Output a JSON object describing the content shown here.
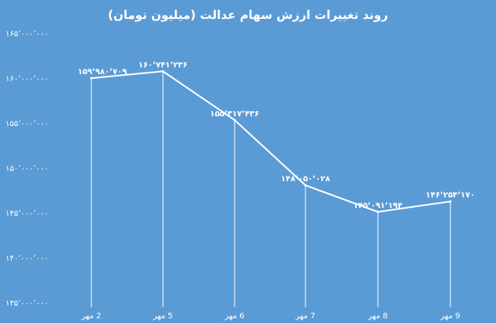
{
  "chart_data": {
    "type": "line",
    "title": "روند تغییرات ارزش سهام عدالت (میلیون تومان)",
    "categories": [
      "2 مهر",
      "5 مهر",
      "6 مهر",
      "7 مهر",
      "8 مهر",
      "9 مهر"
    ],
    "values": [
      159980709,
      160741236,
      155317436,
      148050028,
      145091194,
      146254170
    ],
    "data_labels": [
      "۱۵۹٬۹۸۰٬۷۰۹",
      "۱۶۰٬۷۴۱٬۲۳۶",
      "۱۵۵٬۳۱۷٬۴۳۶",
      "۱۴۸٬۰۵۰٬۰۲۸",
      "۱۴۵٬۰۹۱٬۱۹۴",
      "۱۴۶٬۲۵۴٬۱۷۰"
    ],
    "y_ticks": [
      135000000,
      140000000,
      145000000,
      150000000,
      155000000,
      160000000,
      165000000
    ],
    "y_tick_labels": [
      "۱۳۵٬۰۰۰٬۰۰۰",
      "۱۴۰٬۰۰۰٬۰۰۰",
      "۱۴۵٬۰۰۰٬۰۰۰",
      "۱۵۰٬۰۰۰٬۰۰۰",
      "۱۵۵٬۰۰۰٬۰۰۰",
      "۱۶۰٬۰۰۰٬۰۰۰",
      "۱۶۵٬۰۰۰٬۰۰۰"
    ],
    "ylim": [
      135000000,
      165000000
    ],
    "xlabel": "",
    "ylabel": "",
    "grid": false,
    "colors": {
      "background": "#5b9bd5",
      "line": "#ffffff",
      "text": "#ffffff"
    }
  }
}
